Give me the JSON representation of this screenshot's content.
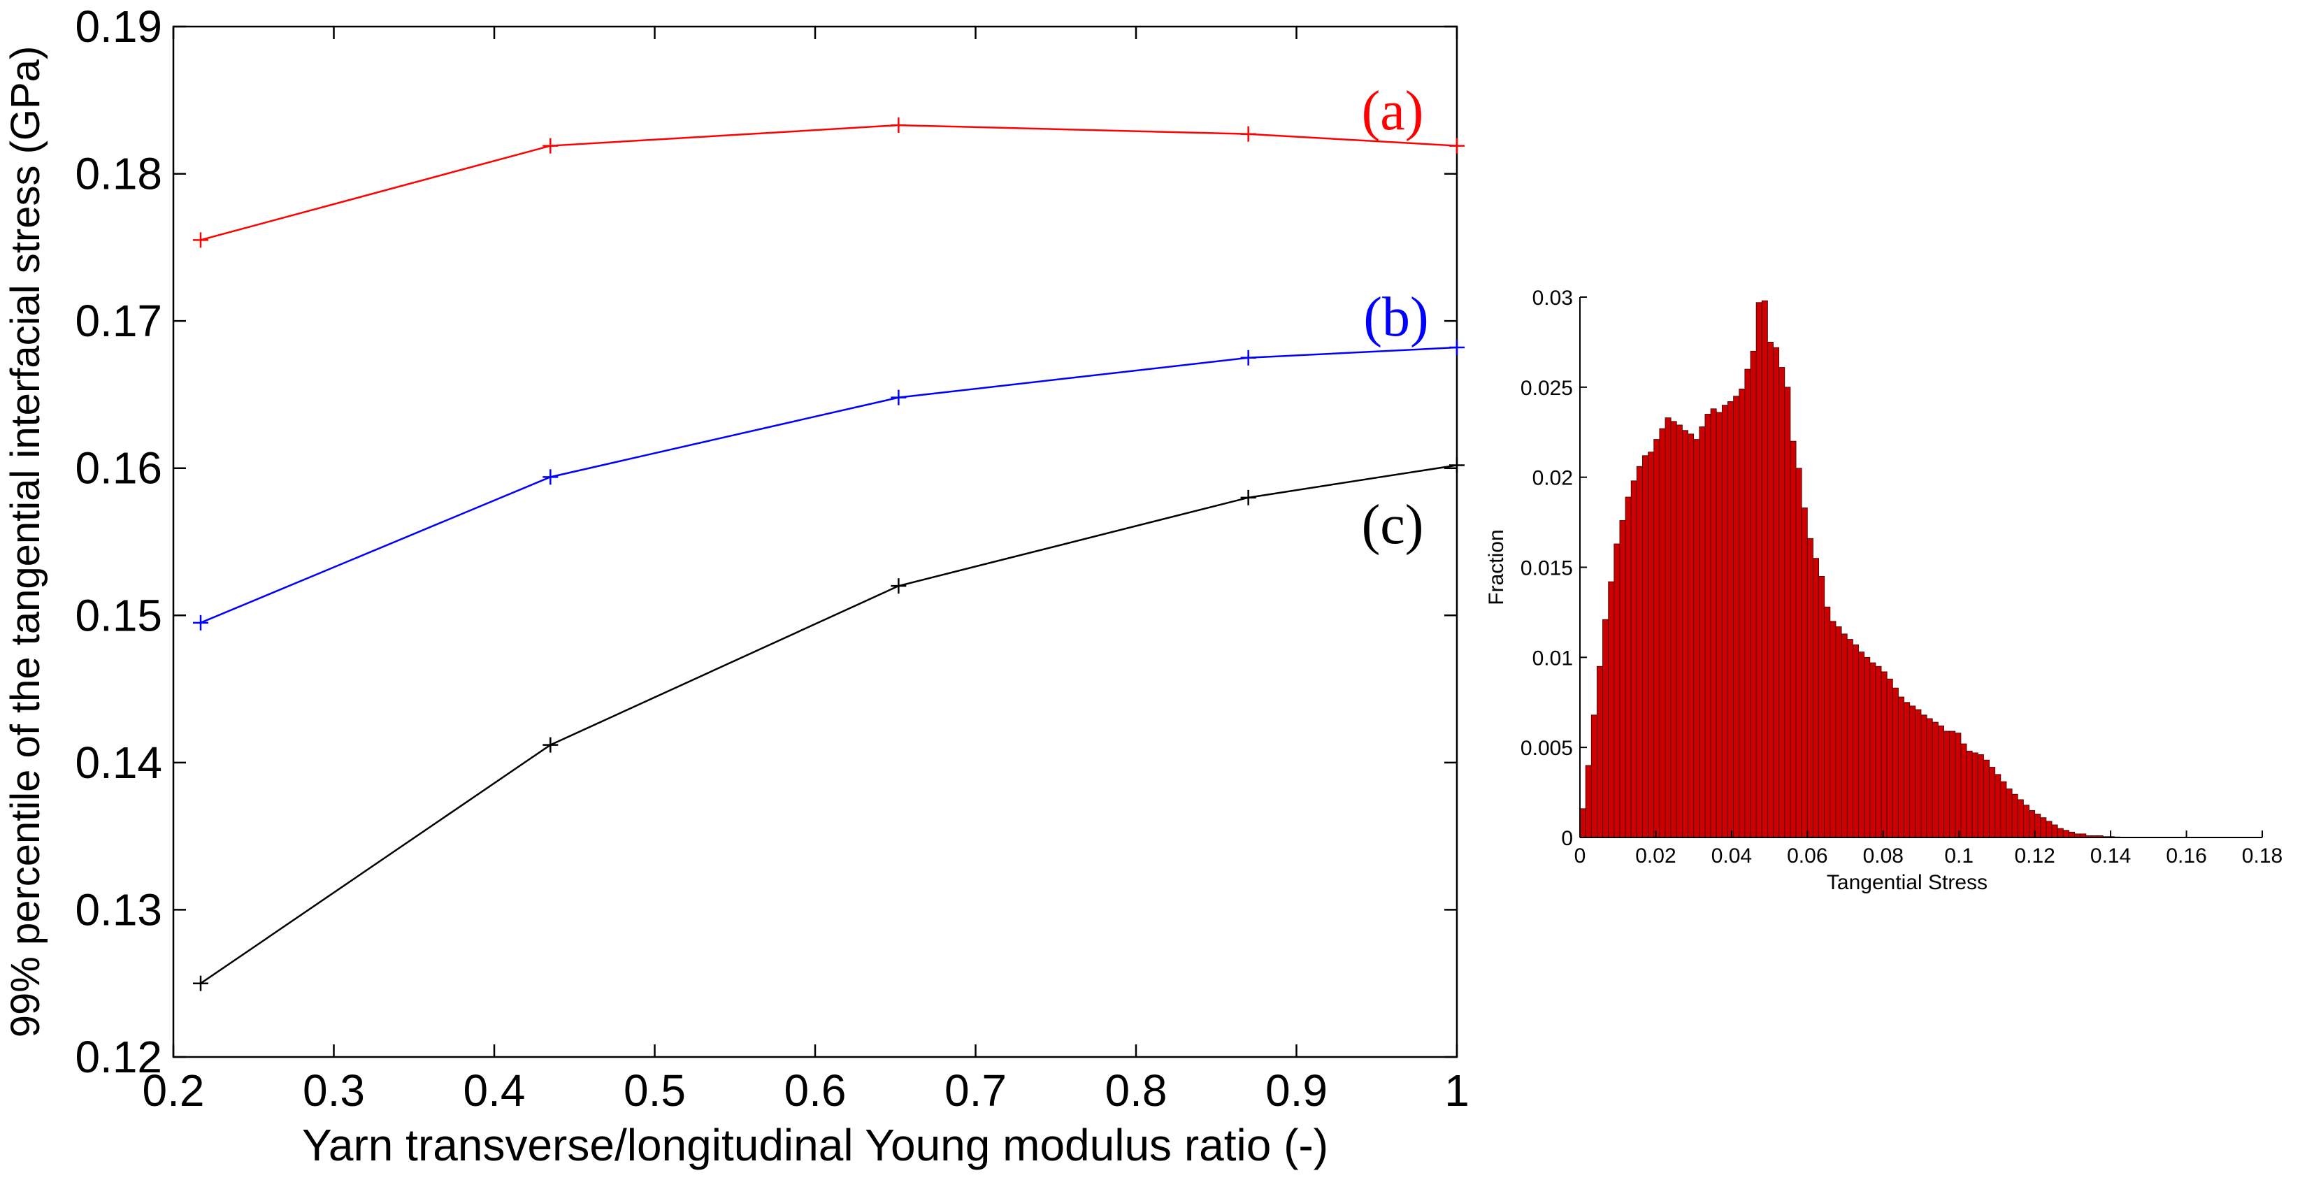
{
  "chart_data": [
    {
      "type": "line",
      "xlabel": "Yarn transverse/longitudinal Young modulus ratio (-)",
      "ylabel": "99% percentile of the tangential interfacial stress (GPa)",
      "xlim": [
        0.2,
        1
      ],
      "ylim": [
        0.12,
        0.19
      ],
      "xticks": [
        "0.2",
        "0.3",
        "0.4",
        "0.5",
        "0.6",
        "0.7",
        "0.8",
        "0.9",
        "1"
      ],
      "yticks": [
        "0.12",
        "0.13",
        "0.14",
        "0.15",
        "0.16",
        "0.17",
        "0.18",
        "0.19"
      ],
      "x": [
        0.217,
        0.435,
        0.652,
        0.87,
        1.0
      ],
      "grid": false,
      "series": [
        {
          "name": "(a)",
          "color": "#ff0000",
          "values": [
            0.1755,
            0.1819,
            0.1833,
            0.1827,
            0.1819
          ]
        },
        {
          "name": "(b)",
          "color": "#0000ff",
          "values": [
            0.1495,
            0.1594,
            0.1648,
            0.1675,
            0.1682
          ]
        },
        {
          "name": "(c)",
          "color": "#000000",
          "values": [
            0.125,
            0.1412,
            0.152,
            0.158,
            0.1602
          ]
        }
      ]
    },
    {
      "type": "bar",
      "xlabel": "Tangential Stress",
      "ylabel": "Fraction",
      "xlim": [
        0,
        0.18
      ],
      "ylim": [
        0,
        0.03
      ],
      "xticks": [
        "0",
        "0.02",
        "0.04",
        "0.06",
        "0.08",
        "0.1",
        "0.12",
        "0.14",
        "0.16",
        "0.18"
      ],
      "yticks": [
        "0",
        "0.005",
        "0.01",
        "0.015",
        "0.02",
        "0.025",
        "0.03"
      ],
      "bar_color": "#cc0000",
      "bin_start": 0,
      "bin_width": 0.0015,
      "values": [
        0.0016,
        0.004,
        0.0068,
        0.0095,
        0.0121,
        0.0142,
        0.0163,
        0.0176,
        0.0189,
        0.0198,
        0.0206,
        0.0212,
        0.0214,
        0.0221,
        0.0227,
        0.0233,
        0.0231,
        0.0229,
        0.0226,
        0.0224,
        0.0221,
        0.0228,
        0.0235,
        0.0238,
        0.0236,
        0.024,
        0.0242,
        0.0245,
        0.0249,
        0.026,
        0.027,
        0.0297,
        0.0298,
        0.0275,
        0.0272,
        0.0261,
        0.025,
        0.022,
        0.0205,
        0.0183,
        0.0166,
        0.0155,
        0.0145,
        0.0128,
        0.012,
        0.0117,
        0.0113,
        0.011,
        0.0107,
        0.0103,
        0.01,
        0.0097,
        0.0095,
        0.0092,
        0.0088,
        0.0083,
        0.0078,
        0.0075,
        0.0073,
        0.0071,
        0.0068,
        0.0066,
        0.0064,
        0.0062,
        0.0059,
        0.0059,
        0.0058,
        0.0052,
        0.0048,
        0.0047,
        0.0046,
        0.0043,
        0.0039,
        0.0035,
        0.0031,
        0.0027,
        0.0024,
        0.0021,
        0.0018,
        0.0015,
        0.0013,
        0.0011,
        0.0009,
        0.0007,
        0.0005,
        0.0004,
        0.0003,
        0.0002,
        0.0002,
        0.0001,
        0.0001,
        0.0001,
        5e-05,
        5e-05,
        3e-05,
        2e-05,
        1e-05,
        1e-05,
        5e-06,
        5e-06
      ]
    }
  ]
}
